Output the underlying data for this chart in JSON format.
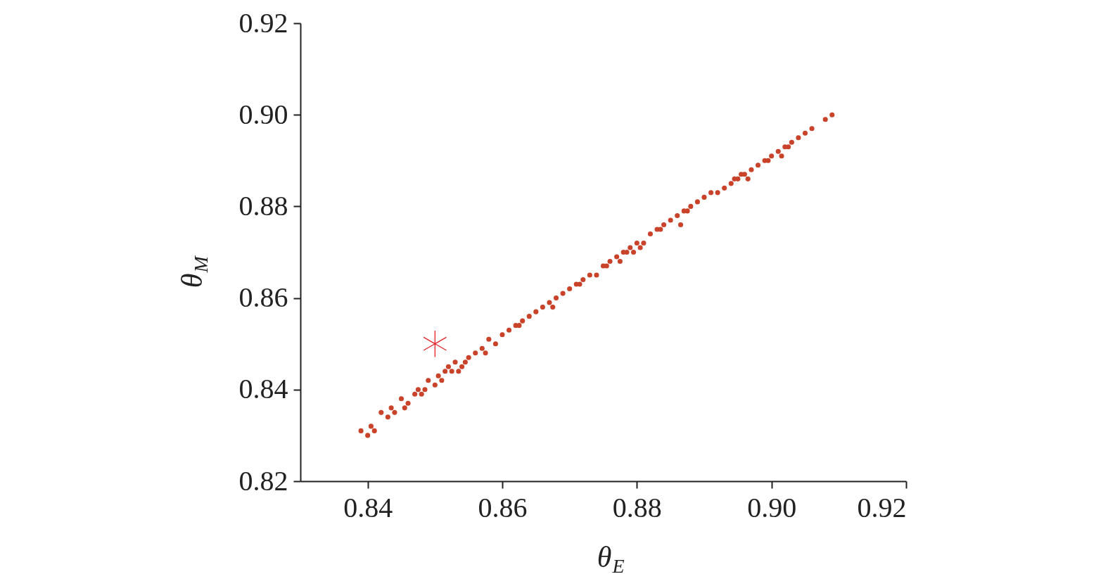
{
  "chart_data": {
    "type": "scatter",
    "xlabel": "θ$_{E}$",
    "ylabel": "θ$_{M}$",
    "xlim": [
      0.83,
      0.92
    ],
    "xticks": [
      {
        "value": 0.84,
        "label": "0.84"
      },
      {
        "value": 0.86,
        "label": "0.86"
      },
      {
        "value": 0.88,
        "label": "0.88"
      },
      {
        "value": 0.9,
        "label": "0.90"
      },
      {
        "value": 0.92,
        "label": "0.92"
      }
    ],
    "ylim": [
      0.82,
      0.92
    ],
    "yticks": [
      {
        "value": 0.82,
        "label": "0.82"
      },
      {
        "value": 0.84,
        "label": "0.84"
      },
      {
        "value": 0.86,
        "label": "0.86"
      },
      {
        "value": 0.88,
        "label": "0.88"
      },
      {
        "value": 0.9,
        "label": "0.90"
      },
      {
        "value": 0.92,
        "label": "0.92"
      }
    ],
    "grid": false,
    "legend": false,
    "series": [
      {
        "color": "#c9432a",
        "marker": "circle",
        "x": [
          0.839,
          0.84,
          0.8405,
          0.841,
          0.842,
          0.843,
          0.8435,
          0.844,
          0.845,
          0.846,
          0.847,
          0.8475,
          0.848,
          0.849,
          0.85,
          0.8505,
          0.851,
          0.852,
          0.8525,
          0.853,
          0.854,
          0.855,
          0.856,
          0.857,
          0.858,
          0.859,
          0.86,
          0.861,
          0.862,
          0.863,
          0.864,
          0.865,
          0.866,
          0.867,
          0.868,
          0.869,
          0.87,
          0.871,
          0.872,
          0.873,
          0.874,
          0.875,
          0.876,
          0.877,
          0.878,
          0.8785,
          0.879,
          0.88,
          0.881,
          0.882,
          0.883,
          0.884,
          0.885,
          0.886,
          0.887,
          0.888,
          0.889,
          0.89,
          0.891,
          0.892,
          0.893,
          0.894,
          0.895,
          0.896,
          0.897,
          0.898,
          0.899,
          0.9,
          0.901,
          0.902,
          0.903,
          0.904,
          0.905,
          0.906,
          0.908,
          0.909,
          0.8455,
          0.8485,
          0.8515,
          0.8535,
          0.8545,
          0.8575,
          0.8625,
          0.8675,
          0.8715,
          0.8755,
          0.8775,
          0.8795,
          0.8805,
          0.8835,
          0.8865,
          0.8875,
          0.8945,
          0.8955,
          0.8965,
          0.8995,
          0.9015,
          0.9025
        ],
        "values": [
          0.831,
          0.83,
          0.832,
          0.831,
          0.835,
          0.834,
          0.836,
          0.835,
          0.838,
          0.837,
          0.839,
          0.84,
          0.839,
          0.842,
          0.841,
          0.843,
          0.842,
          0.845,
          0.844,
          0.846,
          0.845,
          0.847,
          0.848,
          0.849,
          0.851,
          0.85,
          0.852,
          0.853,
          0.854,
          0.855,
          0.856,
          0.857,
          0.858,
          0.859,
          0.86,
          0.861,
          0.862,
          0.863,
          0.864,
          0.865,
          0.865,
          0.867,
          0.868,
          0.869,
          0.87,
          0.87,
          0.871,
          0.872,
          0.872,
          0.874,
          0.875,
          0.876,
          0.877,
          0.878,
          0.879,
          0.88,
          0.881,
          0.882,
          0.883,
          0.883,
          0.884,
          0.885,
          0.886,
          0.887,
          0.888,
          0.889,
          0.89,
          0.891,
          0.892,
          0.893,
          0.894,
          0.895,
          0.896,
          0.897,
          0.899,
          0.9,
          0.836,
          0.84,
          0.844,
          0.844,
          0.846,
          0.848,
          0.854,
          0.858,
          0.863,
          0.867,
          0.868,
          0.87,
          0.871,
          0.875,
          0.876,
          0.879,
          0.886,
          0.887,
          0.886,
          0.89,
          0.891,
          0.893
        ]
      },
      {
        "color": "#e3242b",
        "marker": "cross",
        "x": [
          0.85
        ],
        "values": [
          0.85
        ]
      }
    ]
  }
}
